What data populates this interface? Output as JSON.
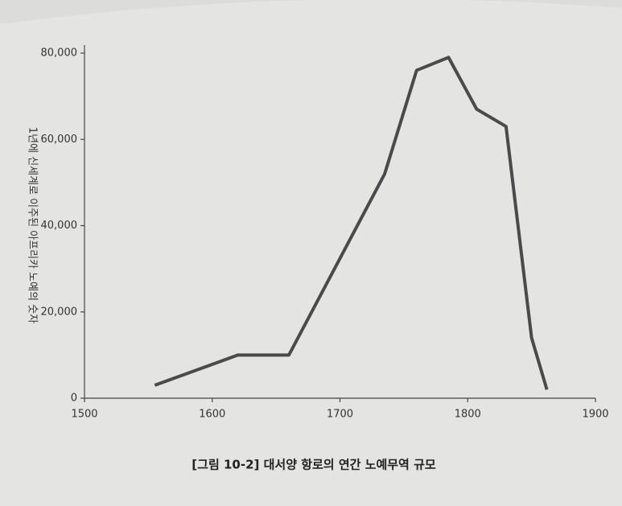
{
  "chart_data": {
    "type": "line",
    "title": "[그림 10-2] 대서양 항로의 연간 노예무역 규모",
    "y_label": "1년에 신세계로 이주된 아프리카 노예의 숫자",
    "x": [
      1555,
      1620,
      1660,
      1735,
      1760,
      1785,
      1807,
      1830,
      1850,
      1862
    ],
    "series": [
      {
        "color": "#4a4a4c",
        "values": [
          3000,
          10000,
          10000,
          52000,
          76000,
          79000,
          67000,
          63000,
          14000,
          2000
        ]
      }
    ],
    "xlim": [
      1500,
      1900
    ],
    "xticks": [
      1500,
      1600,
      1700,
      1800,
      1900
    ],
    "ylim": [
      0,
      80000
    ],
    "yticks": [
      0,
      {
        "value": 20000,
        "label": "20,000"
      },
      {
        "value": 40000,
        "label": "40,000"
      },
      {
        "value": 60000,
        "label": "60,000"
      },
      {
        "value": 80000,
        "label": "80,000"
      }
    ],
    "grid": false
  }
}
